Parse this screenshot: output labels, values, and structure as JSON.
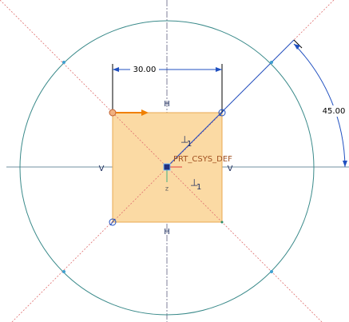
{
  "dimensions": {
    "width": "30.00",
    "angle": "45.00"
  },
  "constraints": {
    "h_top": "H",
    "h_bottom": "H",
    "v_left": "V",
    "v_right": "V",
    "perpendicular": [
      {
        "symbol": "⊥",
        "index": "1"
      },
      {
        "symbol": "⊥",
        "index": "1"
      }
    ]
  },
  "csys": {
    "name": "PRT_CSYS_DEF",
    "axis": "z"
  }
}
